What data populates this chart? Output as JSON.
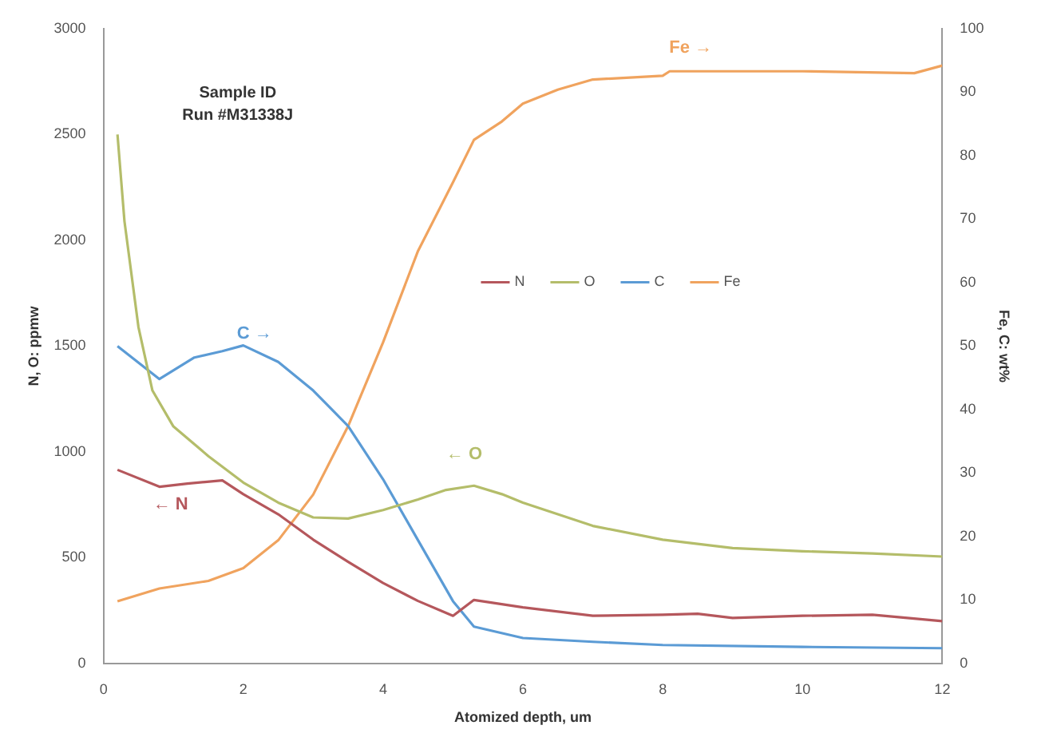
{
  "chart_data": {
    "type": "line",
    "title": "Sample ID",
    "subtitle": "Run #M31338J",
    "xlabel": "Atomized depth, um",
    "ylabel": "N, O: ppmw",
    "y2label": "Fe, C: wt%",
    "xlim": [
      0,
      12
    ],
    "xticks": [
      0,
      2,
      4,
      6,
      8,
      10,
      12
    ],
    "ylim": [
      0,
      3000
    ],
    "yticks": [
      0,
      500,
      1000,
      1500,
      2000,
      2500,
      3000
    ],
    "y2lim": [
      0,
      100
    ],
    "y2ticks": [
      0,
      10,
      20,
      30,
      40,
      50,
      60,
      70,
      80,
      90,
      100
    ],
    "grid": false,
    "legend": "right",
    "marker": "none",
    "line_style": "solid",
    "series": [
      {
        "name": "N",
        "color": "#b5575c",
        "x": [
          0.2,
          0.8,
          1.2,
          1.7,
          2.0,
          2.5,
          3.0,
          3.5,
          4.0,
          4.5,
          5.0,
          5.3,
          6.0,
          7.0,
          8.0,
          8.5,
          9.0,
          10.0,
          11.0,
          12.0
        ],
        "values": [
          915,
          835,
          850,
          865,
          800,
          705,
          585,
          480,
          380,
          295,
          225,
          300,
          265,
          225,
          230,
          235,
          215,
          225,
          230,
          200
        ]
      },
      {
        "name": "O",
        "color": "#b4bd6a",
        "x": [
          0.2,
          0.3,
          0.5,
          0.7,
          1.0,
          1.5,
          2.0,
          2.5,
          3.0,
          3.5,
          4.0,
          4.5,
          4.9,
          5.3,
          5.7,
          6.0,
          7.0,
          8.0,
          9.0,
          10.0,
          11.0,
          12.0
        ],
        "values": [
          2500,
          2090,
          1590,
          1290,
          1120,
          980,
          855,
          760,
          690,
          685,
          725,
          775,
          820,
          840,
          800,
          760,
          650,
          585,
          545,
          530,
          520,
          505
        ]
      },
      {
        "name": "C",
        "color": "#5b9bd5",
        "axis": "y2",
        "x": [
          0.2,
          0.8,
          1.3,
          1.7,
          2.0,
          2.5,
          3.0,
          3.5,
          4.0,
          4.5,
          5.0,
          5.3,
          6.0,
          7.0,
          8.0,
          10.0,
          12.0
        ],
        "values": [
          50,
          44.8,
          48.2,
          49.2,
          50.1,
          47.5,
          43,
          37.4,
          29,
          19.4,
          9.8,
          5.8,
          4,
          3.4,
          2.9,
          2.6,
          2.4
        ]
      },
      {
        "name": "Fe",
        "color": "#f0a35e",
        "axis": "y2",
        "x": [
          0.2,
          0.8,
          1.5,
          2.0,
          2.5,
          3.0,
          3.5,
          4.0,
          4.5,
          5.0,
          5.3,
          5.7,
          6.0,
          6.5,
          7.0,
          8.0,
          8.1,
          10.0,
          11.6,
          12.0
        ],
        "values": [
          9.8,
          11.8,
          13,
          15,
          19.4,
          26.6,
          37.4,
          50.6,
          65,
          75.8,
          82.5,
          85.4,
          88.2,
          90.4,
          92,
          92.6,
          93.3,
          93.3,
          93,
          94.2
        ]
      }
    ],
    "annotations": [
      "C →",
      "← O",
      "← N",
      "Fe →"
    ]
  }
}
